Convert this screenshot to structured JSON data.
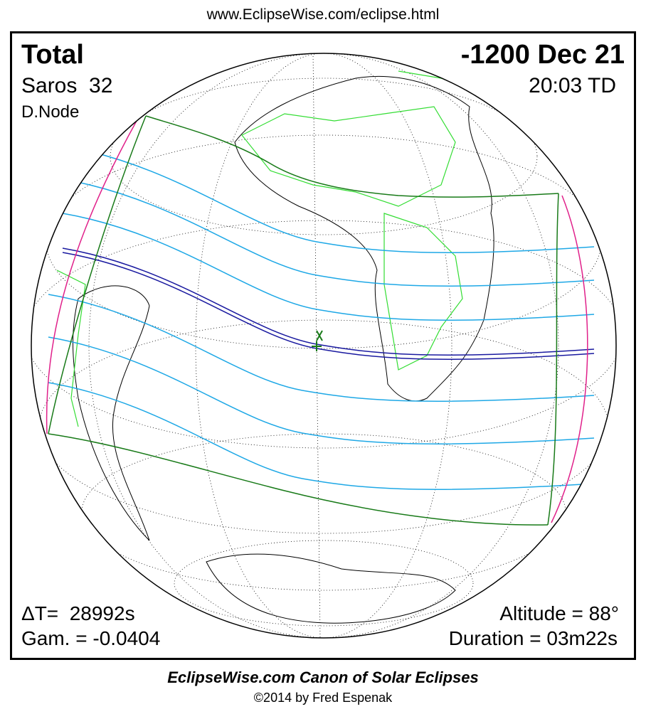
{
  "header": {
    "url": "www.EclipseWise.com/eclipse.html"
  },
  "panel": {
    "top_left": {
      "type": "Total",
      "saros": "Saros  32",
      "node": "D.Node"
    },
    "top_right": {
      "date": "-1200 Dec 21",
      "time": "20:03 TD"
    },
    "bottom_left": {
      "delta_t": "ΔT=  28992s",
      "gamma": "Gam. = -0.0404"
    },
    "bottom_right": {
      "altitude": "Altitude = 88°",
      "duration": "Duration = 03m22s"
    }
  },
  "footer": {
    "title": "EclipseWise.com Canon of Solar Eclipses",
    "copyright": "©2014 by Fred Espenak"
  }
}
